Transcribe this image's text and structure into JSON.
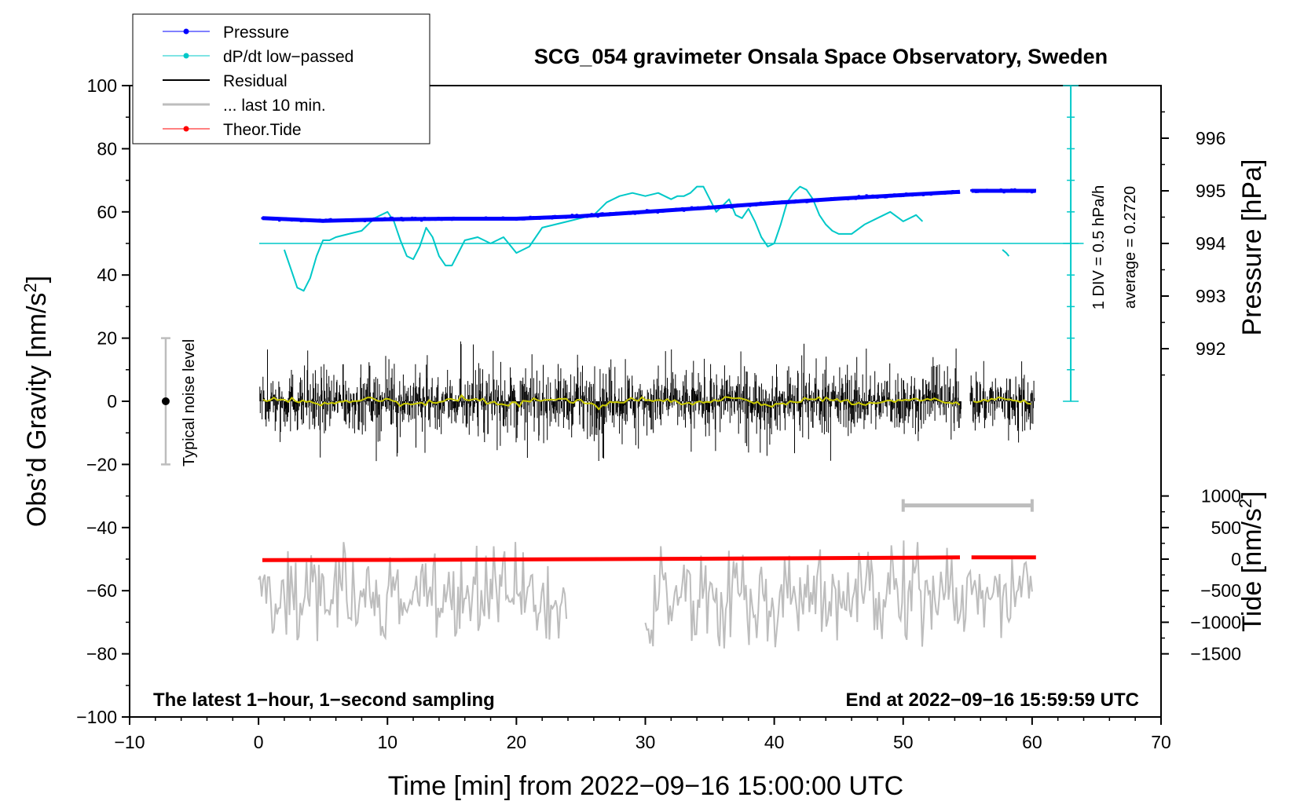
{
  "chart_data": {
    "type": "line",
    "title": "SCG_054 gravimeter Onsala Space Observatory, Sweden",
    "xlabel": "Time [min] from 2022−09−16 15:00:00 UTC",
    "ylabel_left_prefix": "Obs’d Gravity [nm/s",
    "ylabel_left_sup": "2",
    "ylabel_left_suffix": "]",
    "ylabel_right_pressure": "Pressure [hPa]",
    "ylabel_right_tide_prefix": "Tide [nm/s",
    "ylabel_right_tide_sup": "2",
    "ylabel_right_tide_suffix": "]",
    "xlim": [
      -10,
      70
    ],
    "ylim": [
      -100,
      100
    ],
    "x_ticks": [
      -10,
      0,
      10,
      20,
      30,
      40,
      50,
      60,
      70
    ],
    "x_tick_labels": [
      "−10",
      "0",
      "10",
      "20",
      "30",
      "40",
      "50",
      "60",
      "70"
    ],
    "y_ticks": [
      -100,
      -80,
      -60,
      -40,
      -20,
      0,
      20,
      40,
      60,
      80,
      100
    ],
    "y_tick_labels": [
      "−100",
      "−80",
      "−60",
      "−40",
      "−20",
      "0",
      "20",
      "40",
      "60",
      "80",
      "100"
    ],
    "pressure_ticks": [
      992,
      993,
      994,
      995,
      996
    ],
    "pressure_tick_labels": [
      "992",
      "993",
      "994",
      "995",
      "996"
    ],
    "pressure_axis": {
      "gravity_per_hpa": 16.67,
      "hpa_at_gravity_50": 994
    },
    "tide_ticks": [
      -1500,
      -1000,
      -500,
      0,
      500,
      1000
    ],
    "tide_tick_labels": [
      "−1500",
      "−1000",
      "−500",
      "0",
      "500",
      "1000"
    ],
    "tide_axis": {
      "gravity_per_nms2": 0.02,
      "gravity_at_zero": -50
    },
    "legend": {
      "placement": "top-left",
      "entries": [
        {
          "label": "Pressure",
          "color": "#0000ff",
          "style": "line-dot"
        },
        {
          "label": "dP/dt low−passed",
          "color": "#00c8c8",
          "style": "line-dot"
        },
        {
          "label": "Residual",
          "color": "#000000",
          "style": "line"
        },
        {
          "label": "... last 10 min.",
          "color": "#bdbdbd",
          "style": "line"
        },
        {
          "label": "Theor.Tide",
          "color": "#ff0000",
          "style": "line-dot"
        }
      ]
    },
    "annotations": {
      "sampling_note": "The latest 1−hour, 1−second sampling",
      "end_note": "End at 2022−09−16 15:59:59 UTC",
      "noise_label": "Typical noise level",
      "noise_bar": {
        "x": -7.2,
        "center": 0,
        "half_range": 20
      },
      "div_note": "1 DIV = 0.5 hPa/h",
      "average_note": "average = 0.2720",
      "ten_min_bar": {
        "x_start": 50,
        "x_end": 60,
        "y": -33
      }
    },
    "colors": {
      "pressure": "#0000ff",
      "dpdt": "#00c8c8",
      "residual": "#000000",
      "smooth": "#c8c800",
      "lastten": "#bdbdbd",
      "tide": "#ff0000"
    },
    "series": [
      {
        "name": "Pressure",
        "unit": "hPa",
        "segments": [
          {
            "x": [
              0.3,
              5,
              10,
              15,
              20,
              25,
              30,
              35,
              40,
              45,
              50,
              54.4
            ],
            "y": [
              994.48,
              994.43,
              994.46,
              994.47,
              994.47,
              994.52,
              994.6,
              994.68,
              994.77,
              994.85,
              994.92,
              994.98
            ]
          },
          {
            "x": [
              55.3,
              60.3
            ],
            "y": [
              995.0,
              995.0
            ]
          }
        ]
      },
      {
        "name": "dP/dt low-passed",
        "unit": "gravity-axis units",
        "segments": [
          {
            "x": [
              2.0,
              2.5,
              3.0,
              3.5,
              4.0,
              4.5,
              5.0,
              5.5,
              6.0,
              7.0,
              8.0,
              9.0,
              9.5,
              10.0,
              10.5,
              11.0,
              11.5,
              12.0,
              12.5,
              13.0,
              13.5,
              14.0,
              14.5,
              15.0,
              15.5,
              16.0,
              17.0,
              18.0,
              19.0,
              20.0,
              21.0,
              22.0,
              23.0,
              24.0,
              25.0,
              26.0,
              26.5,
              27.0,
              28.0,
              29.0,
              30.0,
              31.0,
              32.0,
              32.5,
              33.0,
              33.5,
              34.0,
              34.5,
              35.0,
              35.5,
              36.0,
              36.5,
              37.0,
              37.5,
              38.0,
              38.5,
              39.0,
              39.5,
              40.0,
              40.5,
              41.0,
              41.5,
              42.0,
              42.5,
              43.0,
              43.5,
              44.0,
              44.5,
              45.0,
              46.0,
              47.0,
              48.0,
              49.0,
              50.0,
              51.0,
              51.5
            ],
            "y": [
              48,
              42,
              36,
              35,
              39,
              46,
              51,
              51,
              52,
              53,
              54,
              58,
              59,
              60,
              57,
              51,
              46,
              45,
              49,
              55,
              52,
              46,
              43,
              43,
              47,
              51,
              52,
              50,
              52,
              47,
              49,
              55,
              56,
              57,
              58,
              59,
              61,
              63,
              65,
              66,
              65,
              66,
              64,
              65,
              65,
              66,
              68,
              68,
              64,
              60,
              62,
              64,
              59,
              58,
              61,
              57,
              52,
              49,
              50,
              56,
              63,
              66,
              68,
              67,
              64,
              59,
              56,
              54,
              53,
              53,
              56,
              58,
              60,
              57,
              59,
              57
            ]
          },
          {
            "x": [
              57.7,
              58.0,
              58.2
            ],
            "y": [
              48,
              47,
              46
            ]
          }
        ]
      },
      {
        "name": "Residual",
        "unit": "nm/s2",
        "segments": [
          {
            "x_start": 0.1,
            "x_end": 54.5
          },
          {
            "x_start": 55.2,
            "x_end": 60.2
          }
        ],
        "amplitude": 8
      },
      {
        "name": "... last 10 min.",
        "unit": "nm/s2 (offset)",
        "segments": [
          {
            "x_start": 0.0,
            "x_end": 24.0
          },
          {
            "x_start": 30.0,
            "x_end": 60.0
          }
        ],
        "center": -62,
        "amplitude": 10
      },
      {
        "name": "Theor.Tide",
        "unit": "nm/s2",
        "segments": [
          {
            "x": [
              0.3,
              10,
              20,
              30,
              40,
              50,
              54.4
            ],
            "y": [
              -15,
              -12,
              -5,
              3,
              12,
              22,
              27
            ]
          },
          {
            "x": [
              55.3,
              60.3
            ],
            "y": [
              27,
              29
            ]
          }
        ]
      }
    ]
  }
}
